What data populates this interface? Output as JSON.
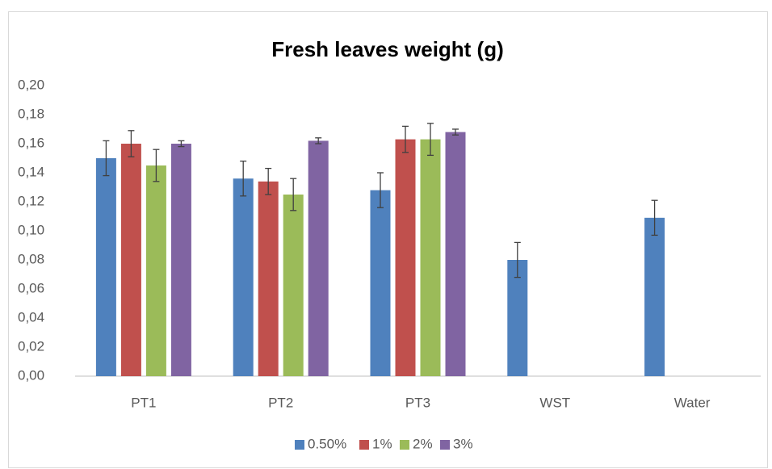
{
  "chart_data": {
    "type": "bar",
    "title": "Fresh leaves weight (g)",
    "categories": [
      "PT1",
      "PT2",
      "PT3",
      "WST",
      "Water"
    ],
    "series": [
      {
        "name": "0.50%",
        "color": "#4f81bd",
        "values": [
          0.15,
          0.136,
          0.128,
          0.08,
          0.109
        ],
        "errors": [
          0.012,
          0.012,
          0.012,
          0.012,
          0.012
        ]
      },
      {
        "name": "1%",
        "color": "#c0504d",
        "values": [
          0.16,
          0.134,
          0.163,
          null,
          null
        ],
        "errors": [
          0.009,
          0.009,
          0.009,
          null,
          null
        ]
      },
      {
        "name": "2%",
        "color": "#9bbb59",
        "values": [
          0.145,
          0.125,
          0.163,
          null,
          null
        ],
        "errors": [
          0.011,
          0.011,
          0.011,
          null,
          null
        ]
      },
      {
        "name": "3%",
        "color": "#8064a2",
        "values": [
          0.16,
          0.162,
          0.168,
          null,
          null
        ],
        "errors": [
          0.002,
          0.002,
          0.002,
          null,
          null
        ]
      }
    ],
    "ylim": [
      0,
      0.2
    ],
    "yticks": [
      {
        "value": 0,
        "label": "0,00"
      },
      {
        "value": 0.02,
        "label": "0,02"
      },
      {
        "value": 0.04,
        "label": "0,04"
      },
      {
        "value": 0.06,
        "label": "0,06"
      },
      {
        "value": 0.08,
        "label": "0,08"
      },
      {
        "value": 0.1,
        "label": "0,10"
      },
      {
        "value": 0.12,
        "label": "0,12"
      },
      {
        "value": 0.14,
        "label": "0,14"
      },
      {
        "value": 0.16,
        "label": "0,16"
      },
      {
        "value": 0.18,
        "label": "0,18"
      },
      {
        "value": 0.2,
        "label": "0,20"
      }
    ],
    "grid": false,
    "legend": "bottom"
  }
}
